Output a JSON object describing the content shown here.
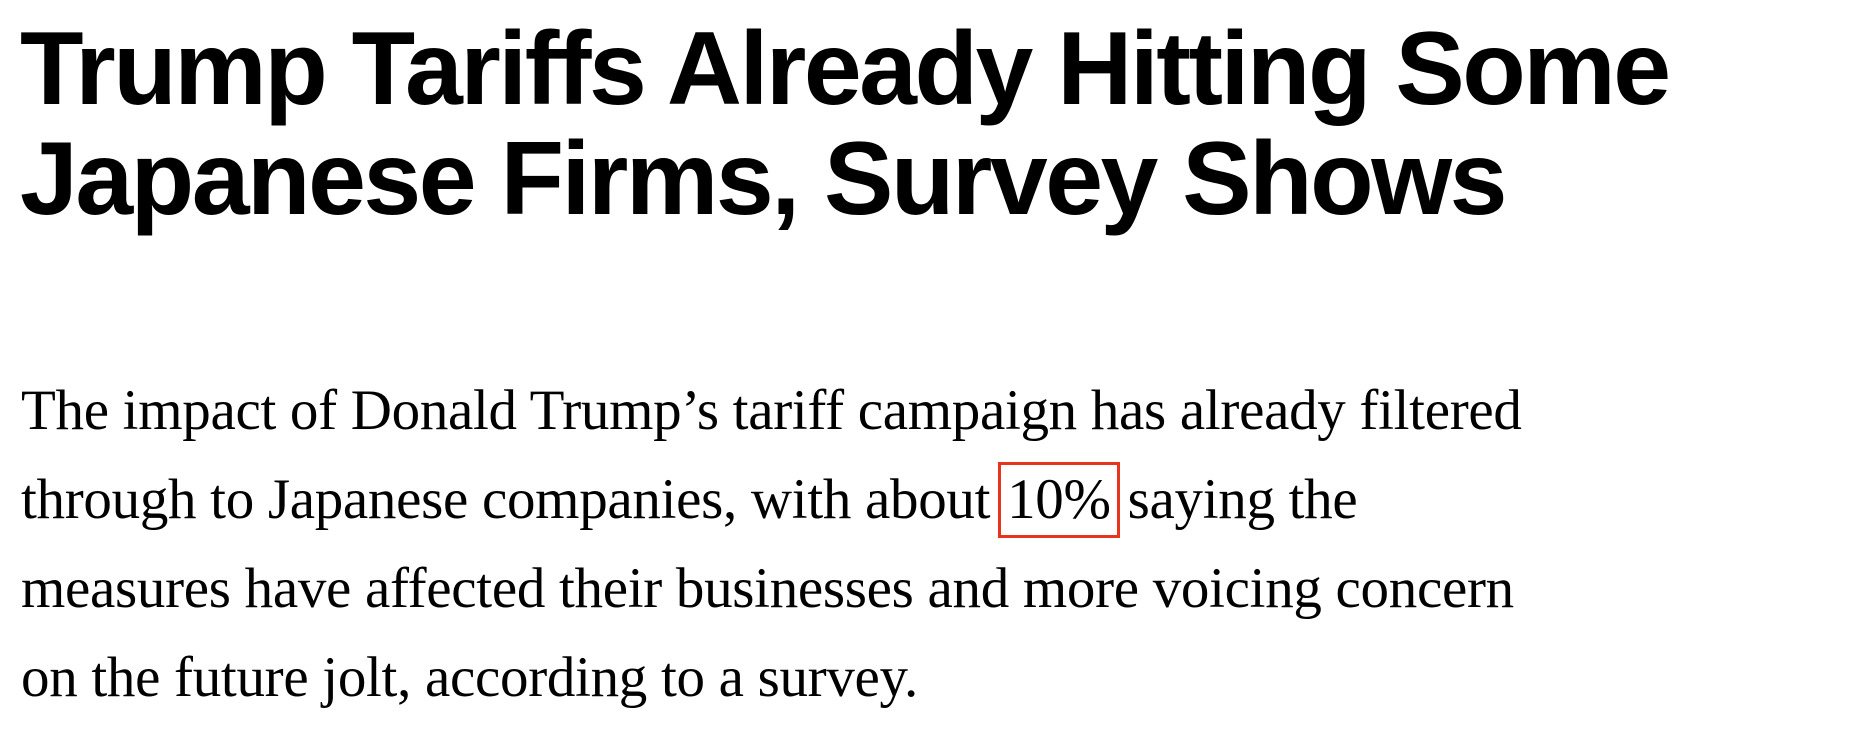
{
  "headline": {
    "lines": [
      "Trump Tariffs Already Hitting Some",
      "Japanese Firms, Survey Shows"
    ]
  },
  "body": {
    "line1": "The impact of Donald Trump’s tariff campaign has already filtered",
    "line2_before": "through to Japanese companies, with about ",
    "highlight": "10%",
    "line2_after": " saying the",
    "line3": "measures have affected their businesses and more voicing concern",
    "line4": "on the future jolt, according to a survey."
  },
  "colors": {
    "highlight_box": "#e8341c"
  }
}
